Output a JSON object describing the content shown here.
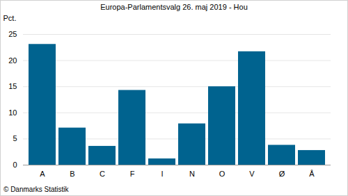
{
  "chart_data": {
    "type": "bar",
    "title": "Europa-Parlamentsvalg 26. maj 2019 - Hou",
    "y_label": "Pct.",
    "caption": "© Danmarks Statistik",
    "categories": [
      "A",
      "B",
      "C",
      "F",
      "I",
      "N",
      "O",
      "V",
      "Ø",
      "Å"
    ],
    "values": [
      23.1,
      7.1,
      3.6,
      14.3,
      1.2,
      7.9,
      15.0,
      21.7,
      3.8,
      2.8
    ],
    "color": "#00638f",
    "ylim": [
      0,
      25
    ],
    "yticks": [
      0,
      5,
      10,
      15,
      20,
      25
    ],
    "grid": true
  }
}
